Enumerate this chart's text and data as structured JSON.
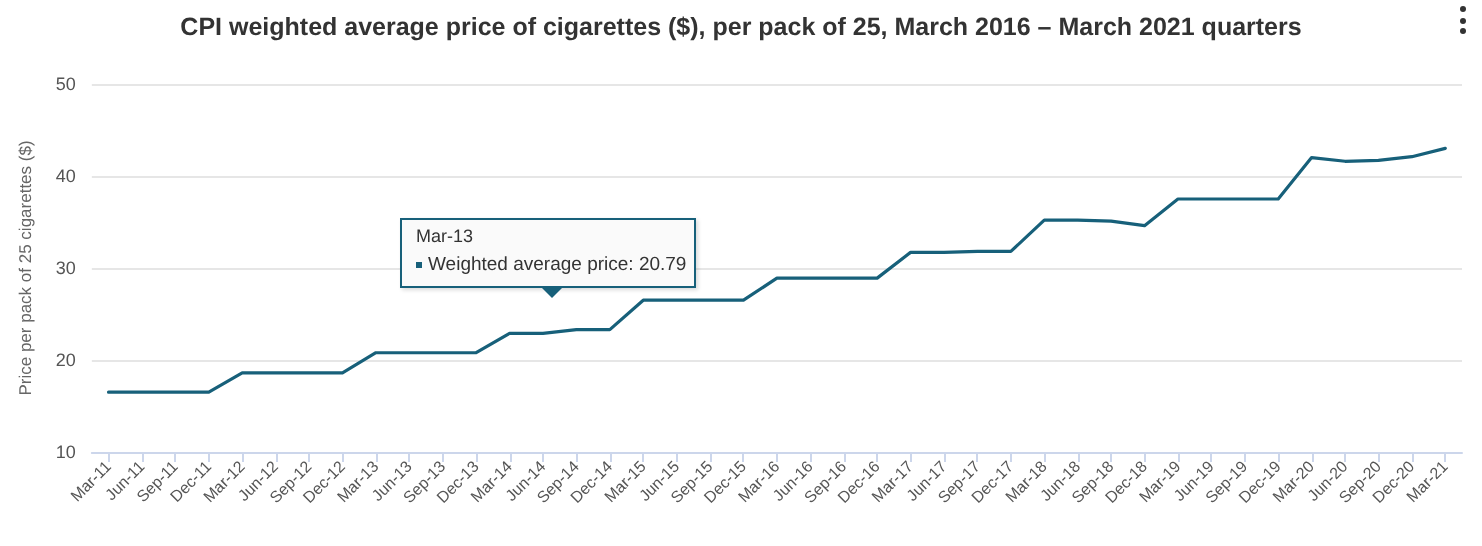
{
  "chart_data": {
    "type": "line",
    "title": "CPI weighted average price of cigarettes ($), per pack of 25, March 2016 – March 2021 quarters",
    "ylabel": "Price per pack of 25 cigarettes ($)",
    "categories": [
      "Mar-11",
      "Jun-11",
      "Sep-11",
      "Dec-11",
      "Mar-12",
      "Jun-12",
      "Sep-12",
      "Dec-12",
      "Mar-13",
      "Jun-13",
      "Sep-13",
      "Dec-13",
      "Mar-14",
      "Jun-14",
      "Sep-14",
      "Dec-14",
      "Mar-15",
      "Jun-15",
      "Sep-15",
      "Dec-15",
      "Mar-16",
      "Jun-16",
      "Sep-16",
      "Dec-16",
      "Mar-17",
      "Jun-17",
      "Sep-17",
      "Dec-17",
      "Mar-18",
      "Jun-18",
      "Sep-18",
      "Dec-18",
      "Mar-19",
      "Jun-19",
      "Sep-19",
      "Dec-19",
      "Mar-20",
      "Jun-20",
      "Sep-20",
      "Dec-20",
      "Mar-21"
    ],
    "series": [
      {
        "color": "#17607a",
        "values": [
          16.5,
          16.5,
          16.5,
          16.5,
          18.6,
          18.6,
          18.6,
          18.6,
          20.79,
          20.79,
          20.79,
          20.79,
          22.9,
          22.9,
          23.3,
          23.3,
          26.5,
          26.5,
          26.5,
          26.5,
          28.9,
          28.9,
          28.9,
          28.9,
          31.7,
          31.7,
          31.8,
          31.8,
          35.2,
          35.2,
          35.1,
          34.6,
          37.5,
          37.5,
          37.5,
          37.5,
          42.0,
          41.6,
          41.7,
          42.1,
          43.0
        ]
      }
    ],
    "ylim": [
      10,
      50
    ],
    "yticks": [
      10,
      20,
      30,
      40,
      50
    ],
    "grid": "y",
    "marker": "none",
    "line_style": "solid",
    "annotations": [
      "Mar-13",
      "Weighted average price: 20.79"
    ]
  }
}
